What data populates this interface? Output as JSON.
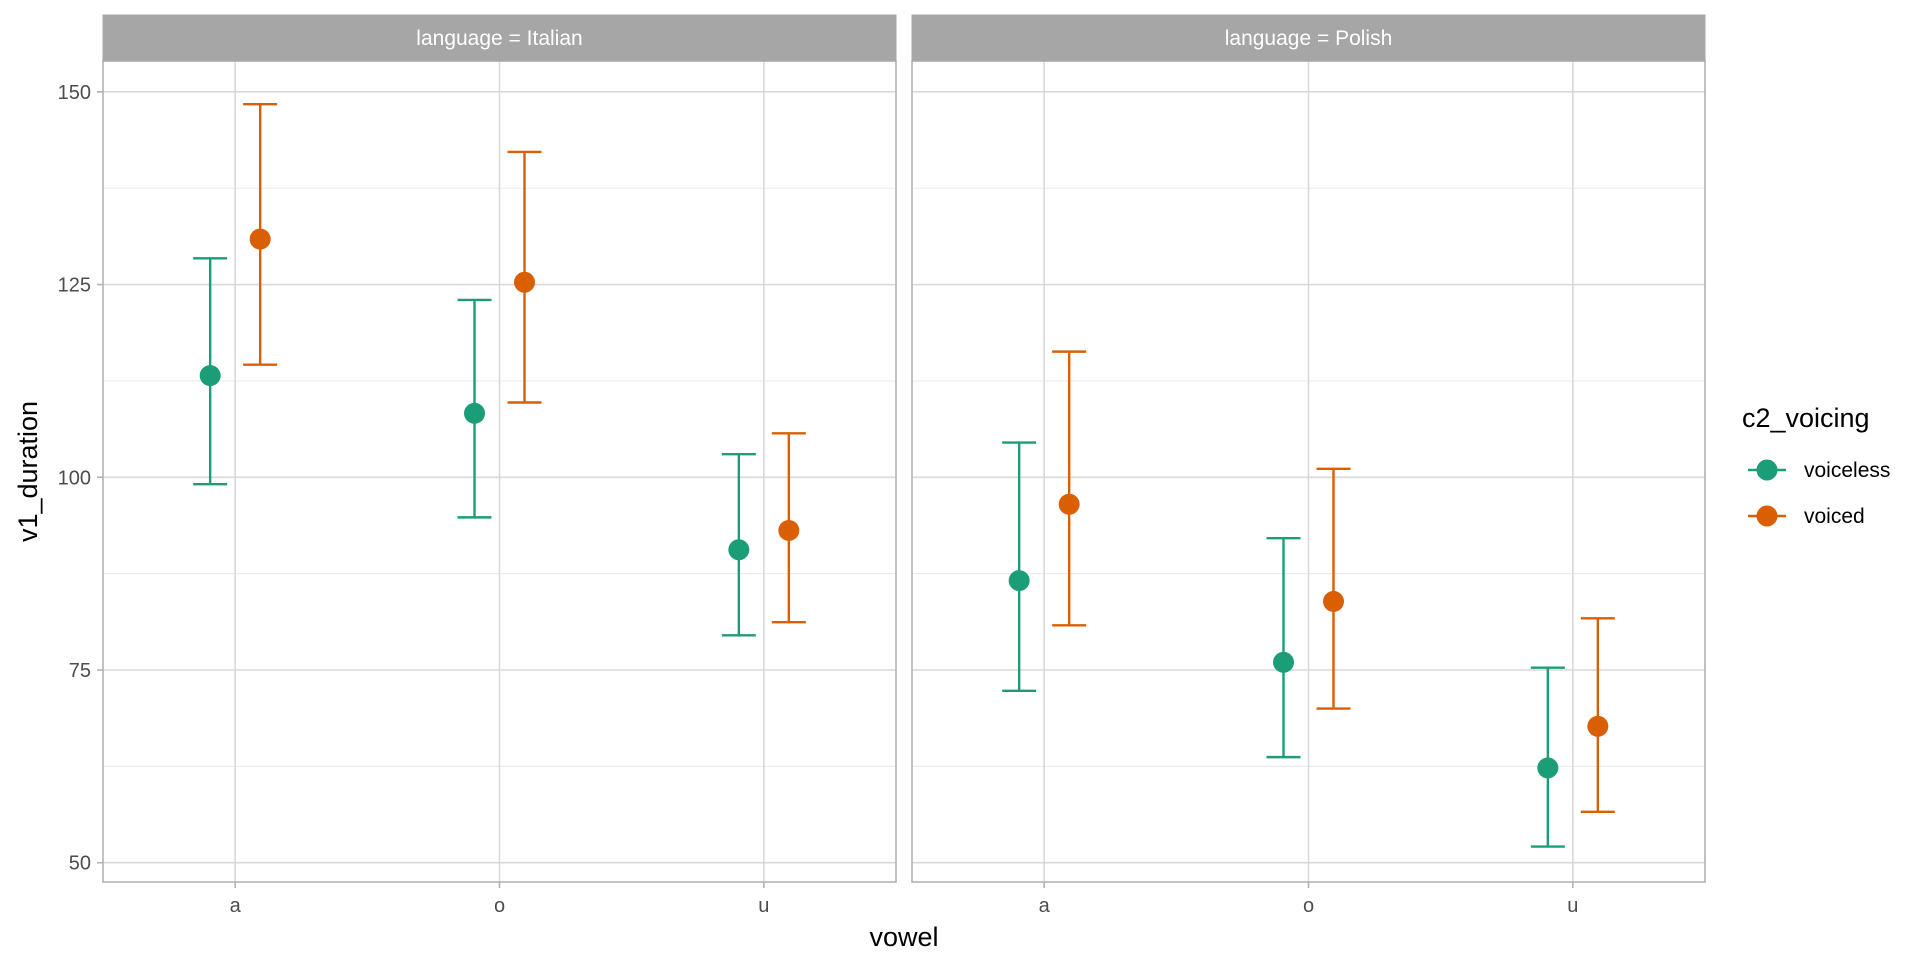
{
  "chart_data": {
    "type": "scatter",
    "subtype": "point-with-errorbars",
    "xlabel": "vowel",
    "ylabel": "v1_duration",
    "categories": [
      "a",
      "o",
      "u"
    ],
    "ylim": [
      47.5,
      154
    ],
    "yticks": [
      50,
      75,
      100,
      125,
      150
    ],
    "grid": true,
    "legend": {
      "title": "c2_voicing",
      "placement": "right",
      "entries": [
        "voiceless",
        "voiced"
      ]
    },
    "series": [
      {
        "name": "voiceless",
        "color": "#1b9e77"
      },
      {
        "name": "voiced",
        "color": "#d95f02"
      }
    ],
    "facets": [
      {
        "strip_label": "language = Italian",
        "data": {
          "voiceless": [
            {
              "x": "a",
              "y": 113.2,
              "ymin": 99.1,
              "ymax": 128.4
            },
            {
              "x": "o",
              "y": 108.3,
              "ymin": 94.8,
              "ymax": 123.0
            },
            {
              "x": "u",
              "y": 90.6,
              "ymin": 79.5,
              "ymax": 103.0
            }
          ],
          "voiced": [
            {
              "x": "a",
              "y": 130.9,
              "ymin": 114.6,
              "ymax": 148.4
            },
            {
              "x": "o",
              "y": 125.3,
              "ymin": 109.7,
              "ymax": 142.2
            },
            {
              "x": "u",
              "y": 93.1,
              "ymin": 81.2,
              "ymax": 105.7
            }
          ]
        }
      },
      {
        "strip_label": "language = Polish",
        "data": {
          "voiceless": [
            {
              "x": "a",
              "y": 86.6,
              "ymin": 72.3,
              "ymax": 104.5
            },
            {
              "x": "o",
              "y": 76.0,
              "ymin": 63.7,
              "ymax": 92.1
            },
            {
              "x": "u",
              "y": 62.3,
              "ymin": 52.1,
              "ymax": 75.3
            }
          ],
          "voiced": [
            {
              "x": "a",
              "y": 96.5,
              "ymin": 80.8,
              "ymax": 116.3
            },
            {
              "x": "o",
              "y": 83.9,
              "ymin": 70.0,
              "ymax": 101.1
            },
            {
              "x": "u",
              "y": 67.7,
              "ymin": 56.6,
              "ymax": 81.7
            }
          ]
        }
      }
    ]
  }
}
